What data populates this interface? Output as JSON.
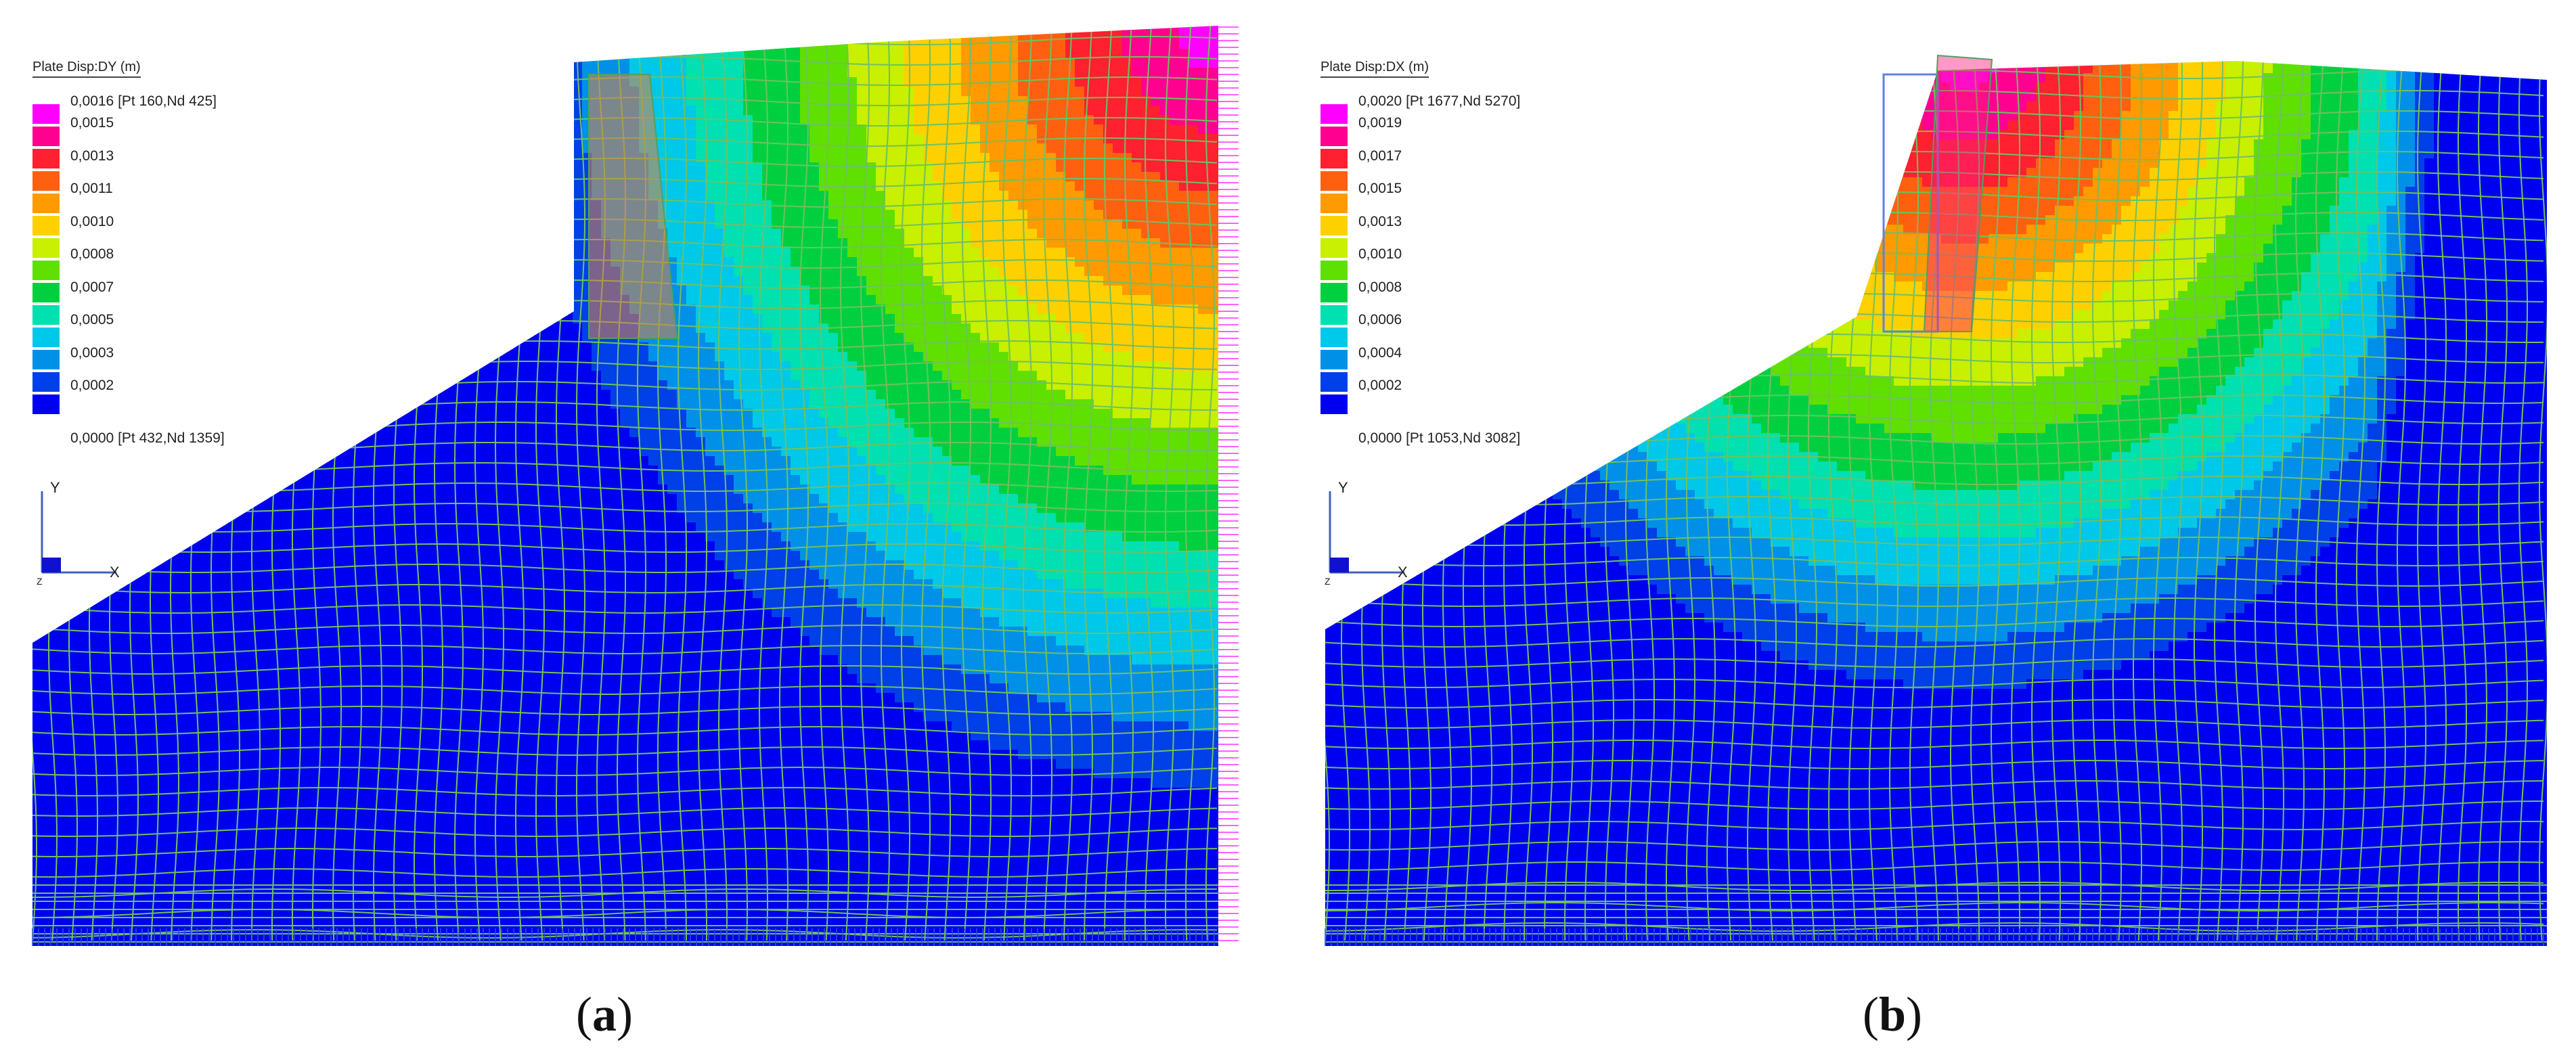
{
  "panels": [
    {
      "id": "a",
      "caption_open": "(",
      "caption_letter": "a",
      "caption_close": ")",
      "legend_title": "Plate Disp:DY   (m)",
      "max_label": "0,0016 [Pt 160,Nd 425]",
      "min_label": "0,0000 [Pt 432,Nd 1359]",
      "scale_labels": [
        "0,0015",
        "0,0013",
        "0,0011",
        "0,0010",
        "0,0008",
        "0,0007",
        "0,0005",
        "0,0003",
        "0,0002"
      ],
      "axis_y": "Y",
      "axis_x": "X",
      "axis_z": "Z"
    },
    {
      "id": "b",
      "caption_open": "(",
      "caption_letter": "b",
      "caption_close": ")",
      "legend_title": "Plate Disp:DX   (m)",
      "max_label": "0,0020 [Pt 1677,Nd 5270]",
      "min_label": "0,0000 [Pt 1053,Nd 3082]",
      "scale_labels": [
        "0,0019",
        "0,0017",
        "0,0015",
        "0,0013",
        "0,0010",
        "0,0008",
        "0,0006",
        "0,0004",
        "0,0002"
      ],
      "axis_y": "Y",
      "axis_x": "X",
      "axis_z": "Z"
    }
  ],
  "colors": {
    "scale": [
      "#ff00ff",
      "#ff0090",
      "#ff2030",
      "#ff6010",
      "#ff9a00",
      "#ffd000",
      "#c8f000",
      "#60e000",
      "#00d040",
      "#00e0b0",
      "#00c8e8",
      "#0090e8",
      "#0040e8",
      "#0000f0"
    ],
    "mesh": "#70c060",
    "pink_ticks": "#ff60ff"
  }
}
